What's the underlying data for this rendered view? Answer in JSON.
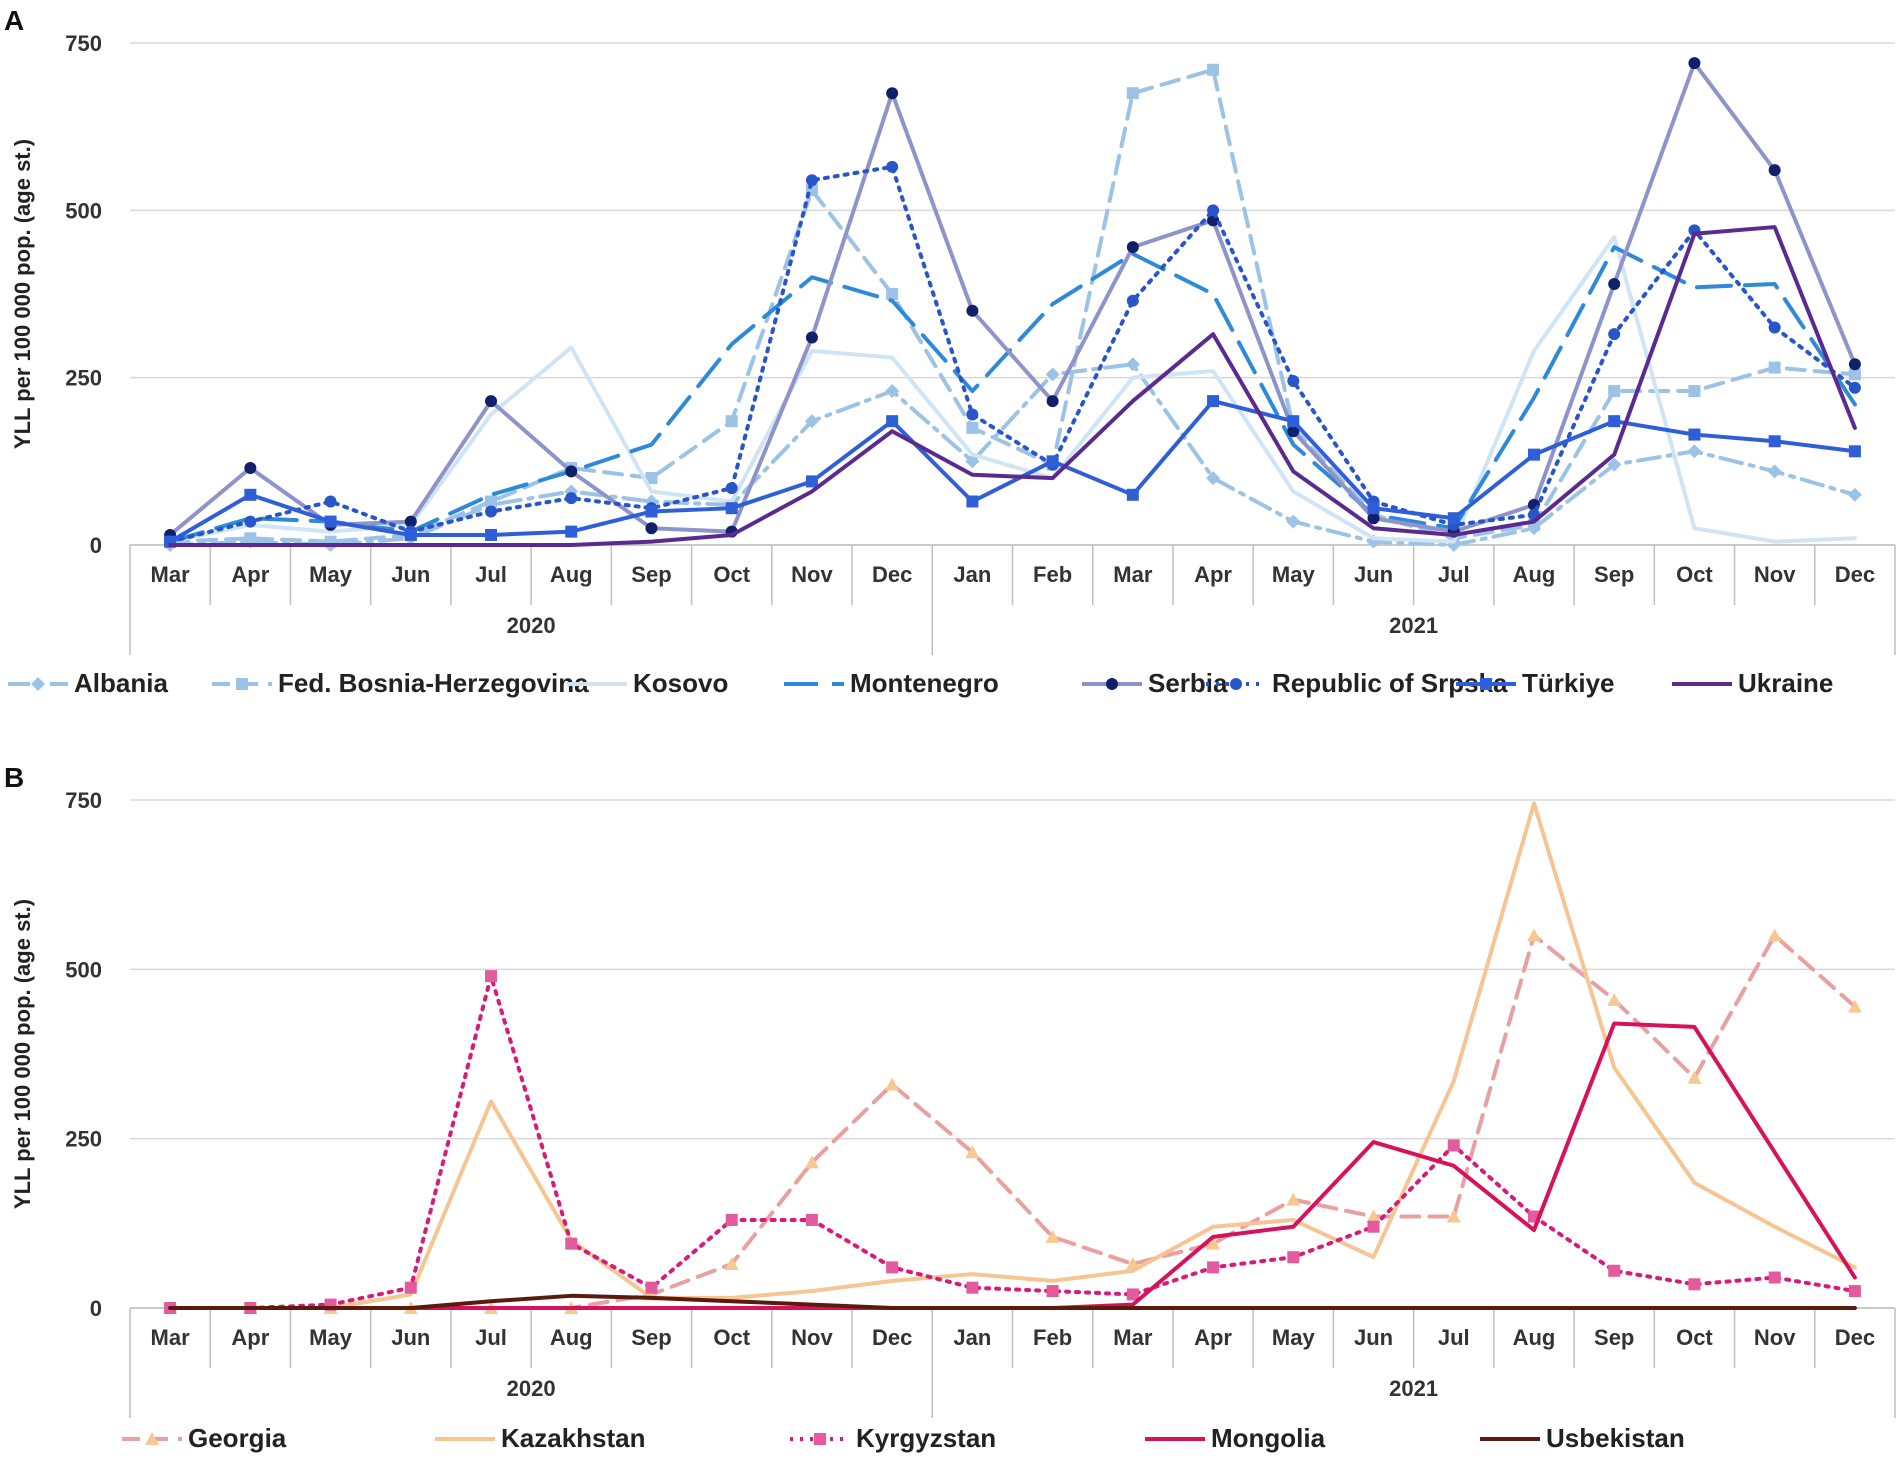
{
  "panels": [
    {
      "label": "A",
      "chart_data": {
        "type": "line",
        "title": "",
        "xlabel": "",
        "ylabel": "YLL per 100 000 pop. (age st.)",
        "ylim": [
          0,
          750
        ],
        "yticks": [
          0,
          250,
          500,
          750
        ],
        "grid": true,
        "legend": "bottom",
        "categories": [
          "Mar",
          "Apr",
          "May",
          "Jun",
          "Jul",
          "Aug",
          "Sep",
          "Oct",
          "Nov",
          "Dec",
          "Jan",
          "Feb",
          "Mar",
          "Apr",
          "May",
          "Jun",
          "Jul",
          "Aug",
          "Sep",
          "Oct",
          "Nov",
          "Dec"
        ],
        "groups": [
          {
            "label": "2020",
            "start": 0,
            "end": 9
          },
          {
            "label": "2021",
            "start": 10,
            "end": 21
          }
        ],
        "series": [
          {
            "name": "Albania",
            "color": "#9cc3e6",
            "dash": "dashdot",
            "marker": "diamond",
            "values": [
              0,
              5,
              0,
              10,
              60,
              80,
              65,
              60,
              185,
              230,
              125,
              255,
              270,
              100,
              35,
              5,
              0,
              25,
              120,
              140,
              110,
              75
            ]
          },
          {
            "name": "Fed. Bosnia-Herzegovina",
            "color": "#9cc3e6",
            "dash": "dash",
            "marker": "square",
            "values": [
              5,
              10,
              5,
              15,
              65,
              115,
              100,
              185,
              530,
              375,
              175,
              120,
              675,
              710,
              175,
              45,
              10,
              30,
              230,
              230,
              265,
              255
            ]
          },
          {
            "name": "Kosovo",
            "color": "#cfe5f5",
            "dash": "solid",
            "marker": "none",
            "values": [
              5,
              30,
              20,
              30,
              195,
              295,
              80,
              65,
              290,
              280,
              135,
              100,
              250,
              260,
              80,
              10,
              5,
              290,
              460,
              25,
              5,
              10
            ]
          },
          {
            "name": "Montenegro",
            "color": "#2e8ad8",
            "dash": "longdash",
            "marker": "none",
            "values": [
              5,
              40,
              35,
              20,
              75,
              110,
              150,
              300,
              400,
              365,
              230,
              360,
              435,
              375,
              150,
              45,
              25,
              220,
              445,
              385,
              390,
              210
            ]
          },
          {
            "name": "Serbia",
            "color": "#8e94c9",
            "dash": "solid",
            "marker": "circle",
            "marker_color": "#10206a",
            "values": [
              15,
              115,
              30,
              35,
              215,
              110,
              25,
              20,
              310,
              675,
              350,
              215,
              445,
              485,
              170,
              40,
              20,
              60,
              390,
              720,
              560,
              270
            ]
          },
          {
            "name": "Republic of Srpska",
            "color": "#2855c8",
            "dash": "dot",
            "marker": "circle",
            "values": [
              5,
              35,
              65,
              20,
              50,
              70,
              55,
              85,
              545,
              565,
              195,
              120,
              365,
              500,
              245,
              65,
              30,
              45,
              315,
              470,
              325,
              235
            ]
          },
          {
            "name": "Türkiye",
            "color": "#2e5fd8",
            "dash": "solid",
            "marker": "square",
            "values": [
              5,
              75,
              35,
              15,
              15,
              20,
              50,
              55,
              95,
              185,
              65,
              125,
              75,
              215,
              185,
              55,
              40,
              135,
              185,
              165,
              155,
              140
            ]
          },
          {
            "name": "Ukraine",
            "color": "#5a2a8e",
            "dash": "solid",
            "marker": "none",
            "values": [
              0,
              0,
              0,
              0,
              0,
              0,
              5,
              15,
              80,
              170,
              105,
              100,
              215,
              315,
              110,
              25,
              15,
              35,
              135,
              465,
              475,
              175
            ]
          }
        ]
      }
    },
    {
      "label": "B",
      "chart_data": {
        "type": "line",
        "title": "",
        "xlabel": "",
        "ylabel": "YLL per 100 000 pop. (age st.)",
        "ylim": [
          0,
          750
        ],
        "yticks": [
          0,
          250,
          500,
          750
        ],
        "grid": true,
        "legend": "bottom",
        "categories": [
          "Mar",
          "Apr",
          "May",
          "Jun",
          "Jul",
          "Aug",
          "Sep",
          "Oct",
          "Nov",
          "Dec",
          "Jan",
          "Feb",
          "Mar",
          "Apr",
          "May",
          "Jun",
          "Jul",
          "Aug",
          "Sep",
          "Oct",
          "Nov",
          "Dec"
        ],
        "groups": [
          {
            "label": "2020",
            "start": 0,
            "end": 9
          },
          {
            "label": "2021",
            "start": 10,
            "end": 21
          }
        ],
        "series": [
          {
            "name": "Georgia",
            "color": "#e8a0a0",
            "dash": "dash",
            "marker": "triangle",
            "marker_color": "#f5c98f",
            "values": [
              0,
              0,
              0,
              0,
              0,
              0,
              20,
              65,
              215,
              330,
              230,
              105,
              65,
              95,
              160,
              135,
              135,
              550,
              455,
              340,
              550,
              445
            ]
          },
          {
            "name": "Kazakhstan",
            "color": "#f5c593",
            "dash": "solid",
            "marker": "none",
            "values": [
              0,
              0,
              0,
              20,
              305,
              100,
              15,
              15,
              25,
              40,
              50,
              40,
              55,
              120,
              130,
              75,
              335,
              745,
              355,
              185,
              120,
              60
            ]
          },
          {
            "name": "Kyrgyzstan",
            "color": "#d81b7a",
            "dash": "dot",
            "marker": "square",
            "marker_color": "#e45a9e",
            "values": [
              0,
              0,
              5,
              30,
              490,
              95,
              30,
              130,
              130,
              60,
              30,
              25,
              20,
              60,
              75,
              120,
              240,
              135,
              55,
              35,
              45,
              25
            ]
          },
          {
            "name": "Mongolia",
            "color": "#d6135a",
            "dash": "solid",
            "marker": "none",
            "values": [
              0,
              0,
              0,
              0,
              0,
              0,
              0,
              0,
              0,
              0,
              0,
              0,
              5,
              105,
              120,
              245,
              210,
              115,
              420,
              415,
              230,
              45
            ]
          },
          {
            "name": "Usbekistan",
            "color": "#5a1a0e",
            "dash": "solid",
            "marker": "none",
            "values": [
              0,
              0,
              0,
              0,
              10,
              18,
              15,
              10,
              5,
              0,
              0,
              0,
              0,
              0,
              0,
              0,
              0,
              0,
              0,
              0,
              0,
              0
            ]
          }
        ]
      }
    }
  ]
}
